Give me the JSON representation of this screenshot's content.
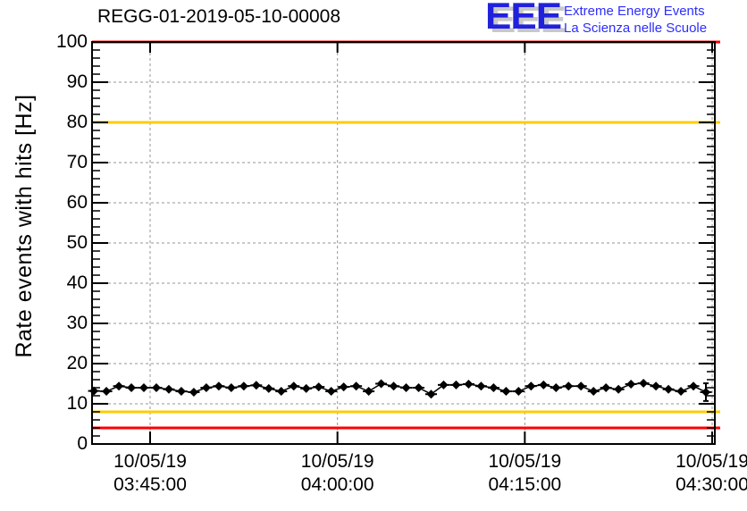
{
  "header": {
    "title": "REGG-01-2019-05-10-00008",
    "logo": {
      "acronym": "EEE",
      "line1": "Extreme Energy Events",
      "line2": "La Scienza nelle Scuole"
    }
  },
  "chart_data": {
    "type": "line",
    "title": "REGG-01-2019-05-10-00008",
    "xlabel": "",
    "ylabel": "Rate events with hits [Hz]",
    "ylim": [
      0,
      100
    ],
    "y_major_ticks": [
      0,
      10,
      20,
      30,
      40,
      50,
      60,
      70,
      80,
      90,
      100
    ],
    "y_minor_step": 2,
    "grid": true,
    "legend_position": "none",
    "x_ticks": [
      {
        "date": "10/05/19",
        "time": "03:45:00"
      },
      {
        "date": "10/05/19",
        "time": "04:00:00"
      },
      {
        "date": "10/05/19",
        "time": "04:15:00"
      },
      {
        "date": "10/05/19",
        "time": "04:30:00"
      }
    ],
    "threshold_lines": [
      {
        "y": 100,
        "color": "#ff0000",
        "meaning": "alarm-high"
      },
      {
        "y": 80,
        "color": "#ffcc00",
        "meaning": "warning-high"
      },
      {
        "y": 8,
        "color": "#ffcc00",
        "meaning": "warning-low"
      },
      {
        "y": 4,
        "color": "#ff0000",
        "meaning": "alarm-low"
      }
    ],
    "series": [
      {
        "name": "rate-events-with-hits",
        "color": "#000000",
        "marker": "diamond",
        "start_time": "03:40:30",
        "step_seconds": 60,
        "y_error": 0.5,
        "last_point_y_error": 2.2,
        "values": [
          13.2,
          13.1,
          14.4,
          14.0,
          14.0,
          14.0,
          13.6,
          13.1,
          12.9,
          14.0,
          14.4,
          14.0,
          14.4,
          14.6,
          13.8,
          13.1,
          14.4,
          13.8,
          14.2,
          13.1,
          14.2,
          14.4,
          13.1,
          15.0,
          14.4,
          14.0,
          14.0,
          12.4,
          14.7,
          14.7,
          14.9,
          14.4,
          14.0,
          13.1,
          13.1,
          14.4,
          14.7,
          14.0,
          14.4,
          14.4,
          13.1,
          14.0,
          13.6,
          14.9,
          15.1,
          14.4,
          13.6,
          13.1,
          14.4,
          12.9
        ]
      }
    ],
    "colors": {
      "alarm": "#ff0000",
      "warning": "#ffcc00",
      "grid": "#969696",
      "frame": "#000000",
      "series": "#000000",
      "logo_blue": "#2121dd",
      "logo_text_blue": "#2d2dff",
      "logo_shadow": "#c8c8c8"
    }
  }
}
